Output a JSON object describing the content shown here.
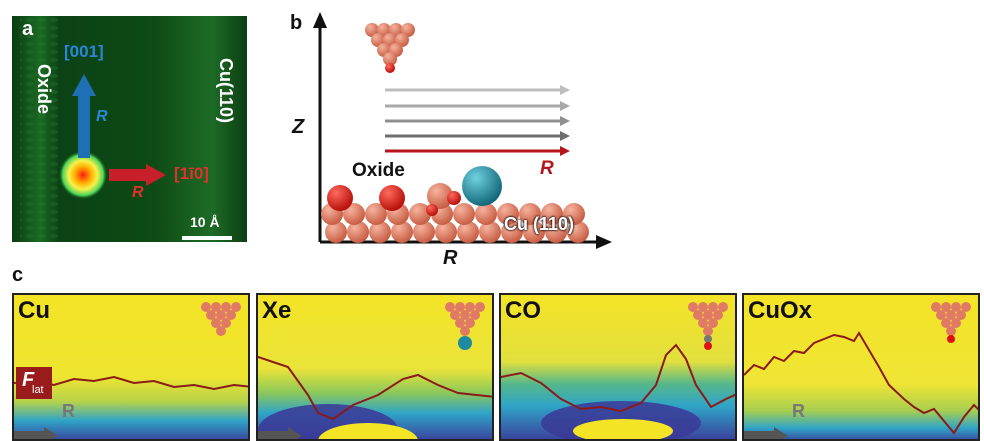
{
  "panel_a": {
    "letter": "a",
    "label_oxide": "Oxide",
    "label_cu110": "Cu(110)",
    "dir_up": "[001]",
    "dir_right": "[1ī0]",
    "arrow_up_r": "R",
    "arrow_right_r": "R",
    "scale_bar": "10 Å",
    "colors": {
      "blue": "#1f6fb5",
      "red": "#c8202a",
      "green_bg": "#0d4a14"
    }
  },
  "panel_b": {
    "letter": "b",
    "axis_z": "Z",
    "axis_r": "R",
    "label_oxide": "Oxide",
    "label_cu110": "Cu (110)",
    "arrow_r": "R",
    "colors": {
      "copper": "#d9775e",
      "oxygen": "#e0201c",
      "xe": "#1e8aa0",
      "arrow_red": "#b4161c"
    }
  },
  "panel_c": {
    "letter": "c",
    "subpanels": [
      {
        "label": "Cu",
        "tip": "plain"
      },
      {
        "label": "Xe",
        "tip": "xe"
      },
      {
        "label": "CO",
        "tip": "co"
      },
      {
        "label": "CuOx",
        "tip": "oxygen"
      }
    ],
    "flat_label_main": "F",
    "flat_label_sub": "lat",
    "r_label": "R",
    "colors": {
      "map_high": "#f4e426",
      "map_mid": "#2fa4c8",
      "map_low": "#3b3897",
      "curve": "#8b1a1a"
    }
  }
}
